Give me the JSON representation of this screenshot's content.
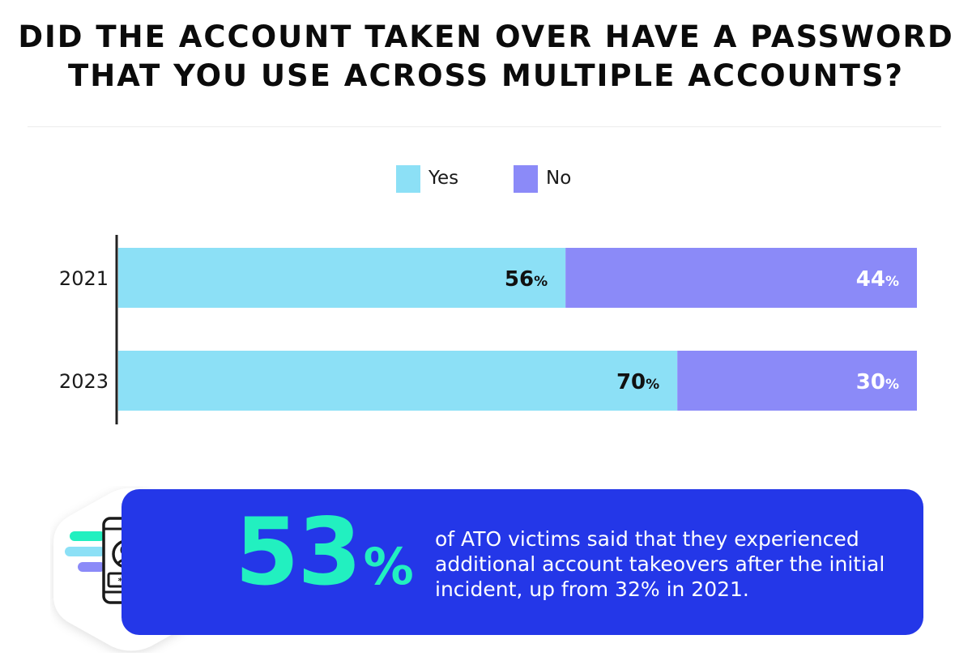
{
  "colors": {
    "yes": "#8ce0f6",
    "no": "#8b8af8",
    "callout_bg": "#2437e8",
    "callout_number": "#22f0c0",
    "axis": "#222222"
  },
  "chart_data": {
    "type": "bar",
    "orientation": "horizontal",
    "stacked": true,
    "title": "DID THE ACCOUNT TAKEN OVER HAVE A PASSWORD THAT YOU USE ACROSS MULTIPLE ACCOUNTS?",
    "title_lines": [
      "DID THE ACCOUNT TAKEN OVER HAVE A PASSWORD",
      "THAT YOU USE ACROSS MULTIPLE ACCOUNTS?"
    ],
    "categories": [
      "2021",
      "2023"
    ],
    "series": [
      {
        "name": "Yes",
        "values": [
          56,
          70
        ]
      },
      {
        "name": "No",
        "values": [
          44,
          30
        ]
      }
    ],
    "value_suffix": "%",
    "xlim": [
      0,
      100
    ],
    "legend": "top-center",
    "grid": false
  },
  "callout": {
    "icon": "phone-account-warning-icon",
    "stat_number": "53",
    "stat_symbol": "%",
    "text": "of ATO victims said that they experienced additional account takeovers after the initial incident, up from 32% in 2021."
  }
}
